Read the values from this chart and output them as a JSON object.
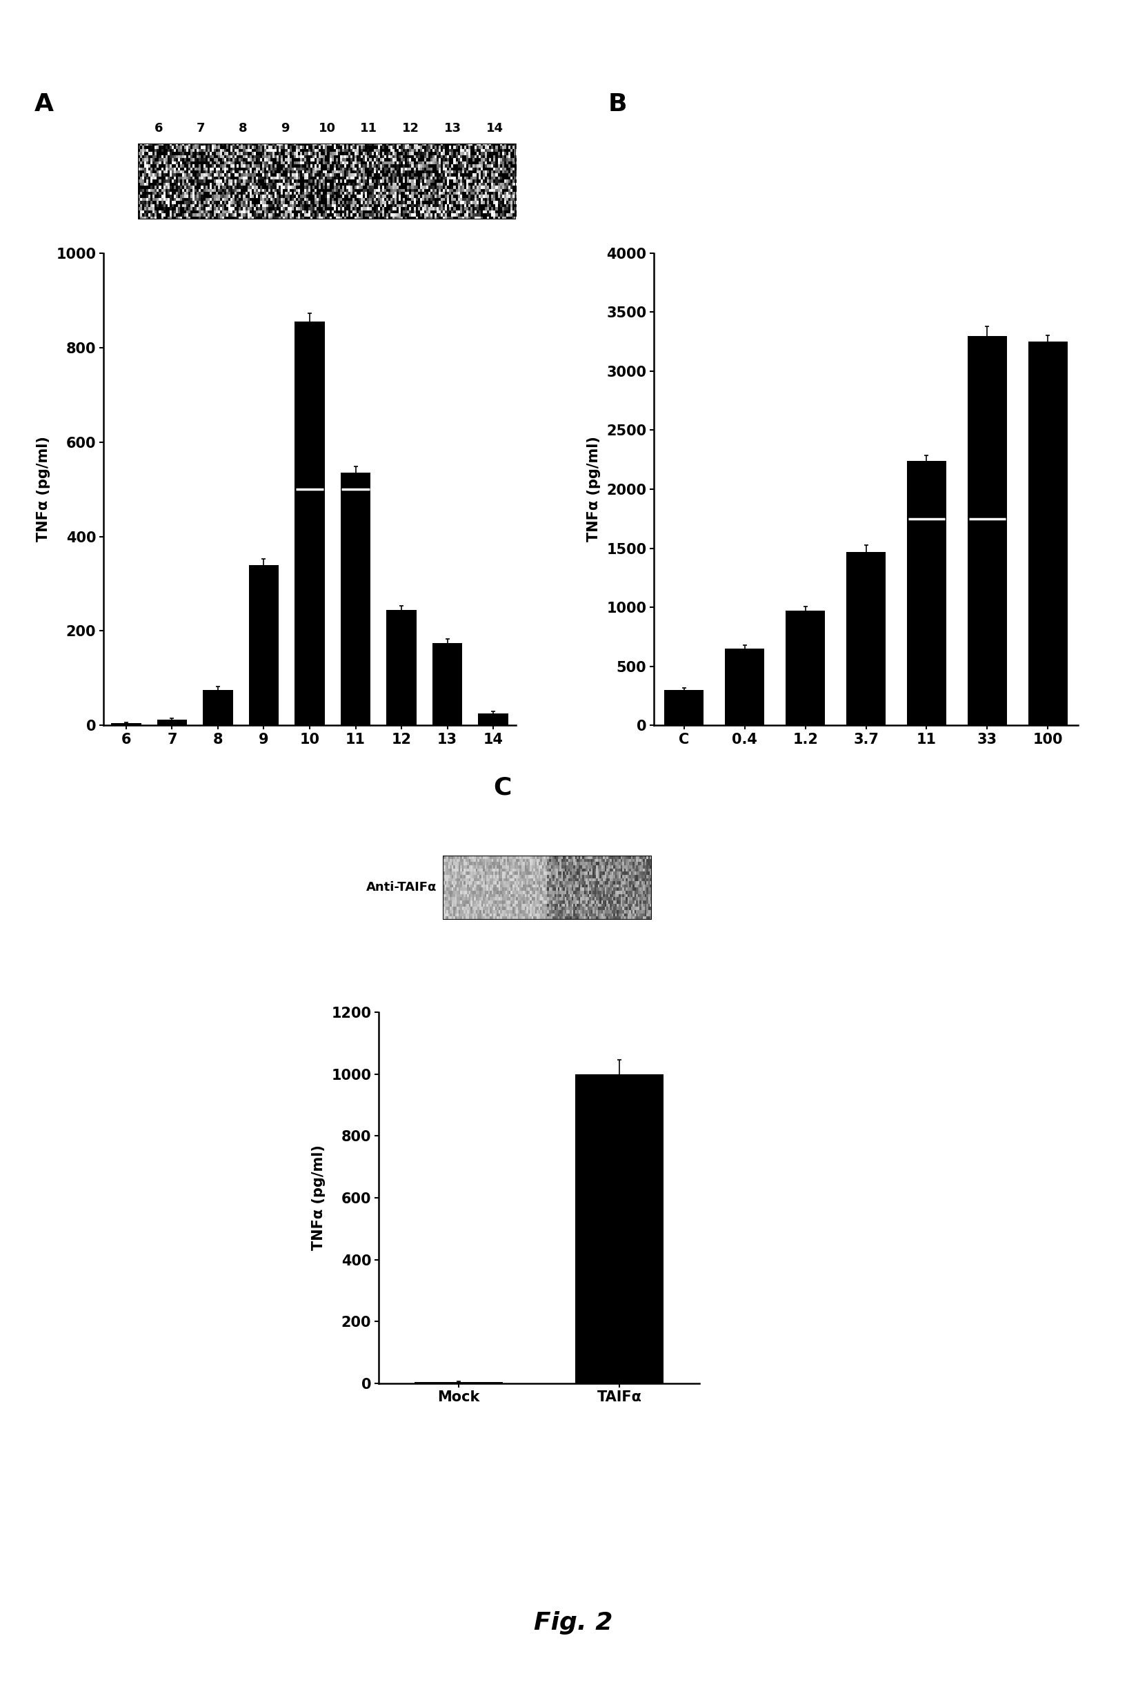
{
  "panel_A": {
    "label": "A",
    "categories": [
      "6",
      "7",
      "8",
      "9",
      "10",
      "11",
      "12",
      "13",
      "14"
    ],
    "values": [
      5,
      12,
      75,
      340,
      855,
      535,
      245,
      175,
      25
    ],
    "errors": [
      2,
      3,
      7,
      12,
      18,
      14,
      8,
      8,
      4
    ],
    "ylim": [
      0,
      1000
    ],
    "yticks": [
      0,
      200,
      400,
      600,
      800,
      1000
    ],
    "ylabel": "TNFα (pg/ml)",
    "bar_color": "#000000",
    "bar_width": 0.65,
    "white_line_idx": [
      4,
      5
    ],
    "white_line_y": [
      500,
      500
    ]
  },
  "panel_B": {
    "label": "B",
    "categories": [
      "C",
      "0.4",
      "1.2",
      "3.7",
      "11",
      "33",
      "100"
    ],
    "values": [
      300,
      650,
      970,
      1470,
      2240,
      3300,
      3250
    ],
    "errors": [
      18,
      28,
      38,
      55,
      45,
      80,
      55
    ],
    "ylim": [
      0,
      4000
    ],
    "yticks": [
      0,
      500,
      1000,
      1500,
      2000,
      2500,
      3000,
      3500,
      4000
    ],
    "ylabel": "TNFα (pg/ml)",
    "bar_color": "#000000",
    "bar_width": 0.65,
    "white_line_idx": [
      4,
      5
    ],
    "white_line_y": [
      1750,
      1750
    ]
  },
  "panel_C": {
    "label": "C",
    "categories": [
      "Mock",
      "TAIFα"
    ],
    "values": [
      5,
      1000
    ],
    "errors": [
      2,
      45
    ],
    "ylim": [
      0,
      1200
    ],
    "yticks": [
      0,
      200,
      400,
      600,
      800,
      1000,
      1200
    ],
    "ylabel": "TNFα (pg/ml)",
    "bar_color": "#000000",
    "bar_width": 0.55,
    "anti_taif_label": "Anti-TAIFα"
  },
  "figure_label": "Fig. 2",
  "background_color": "#ffffff",
  "label_fontsize": 22,
  "tick_fontsize": 15,
  "ylabel_fontsize": 15,
  "panel_label_fontsize": 26
}
